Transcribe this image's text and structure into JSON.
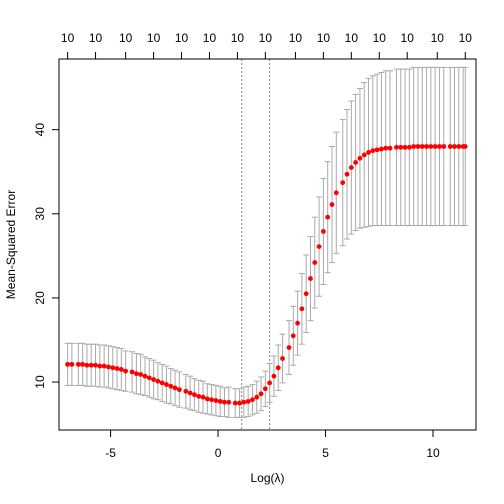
{
  "chart_data": {
    "type": "scatter",
    "title": "",
    "xlabel": "Log(λ)",
    "ylabel": "Mean-Squared Error",
    "xlim": [
      -7.4,
      12.0
    ],
    "ylim": [
      4.3,
      48.4
    ],
    "x_ticks": [
      -5,
      0,
      5,
      10
    ],
    "y_ticks": [
      10,
      20,
      30,
      40
    ],
    "x_tick_labels": [
      "-5",
      "0",
      "5",
      "10"
    ],
    "y_tick_labels": [
      "10",
      "20",
      "30",
      "40"
    ],
    "top_axis": {
      "positions": [
        -7.0,
        -5.7,
        -4.3,
        -3.0,
        -1.7,
        -0.4,
        0.9,
        2.2,
        3.6,
        4.9,
        6.2,
        7.5,
        8.8,
        10.2,
        11.5
      ],
      "labels": [
        "10",
        "10",
        "10",
        "10",
        "10",
        "10",
        "10",
        "10",
        "10",
        "10",
        "10",
        "10",
        "10",
        "10",
        "10"
      ]
    },
    "grid": false,
    "vlines": [
      1.1,
      2.4
    ],
    "colors": {
      "points": "#ff0000",
      "error_bars": "#a9a9a9",
      "vlines": "#808080",
      "axis": "#000000"
    },
    "series": [
      {
        "x": [
          -7.0,
          -6.8,
          -6.5,
          -6.3,
          -6.1,
          -5.9,
          -5.7,
          -5.5,
          -5.3,
          -5.1,
          -4.9,
          -4.7,
          -4.5,
          -4.3,
          -4.0,
          -3.8,
          -3.6,
          -3.4,
          -3.2,
          -3.0,
          -2.8,
          -2.6,
          -2.4,
          -2.2,
          -2.0,
          -1.8,
          -1.5,
          -1.3,
          -1.1,
          -0.9,
          -0.7,
          -0.5,
          -0.3,
          -0.1,
          0.1,
          0.3,
          0.5,
          0.8,
          1.0,
          1.2,
          1.4,
          1.6,
          1.8,
          2.0,
          2.2,
          2.4,
          2.6,
          2.8,
          3.0,
          3.3,
          3.5,
          3.7,
          3.9,
          4.1,
          4.3,
          4.5,
          4.7,
          4.9,
          5.1,
          5.3,
          5.5,
          5.8,
          6.0,
          6.2,
          6.4,
          6.6,
          6.8,
          7.0,
          7.2,
          7.4,
          7.6,
          7.8,
          8.0,
          8.3,
          8.5,
          8.7,
          8.9,
          9.1,
          9.3,
          9.5,
          9.7,
          9.9,
          10.1,
          10.3,
          10.5,
          10.8,
          11.0,
          11.2,
          11.4,
          11.5
        ],
        "y": [
          12.1,
          12.1,
          12.1,
          12.1,
          12.0,
          12.0,
          12.0,
          11.9,
          11.9,
          11.8,
          11.7,
          11.6,
          11.5,
          11.3,
          11.2,
          11.0,
          10.9,
          10.7,
          10.5,
          10.3,
          10.1,
          9.9,
          9.7,
          9.5,
          9.3,
          9.1,
          8.9,
          8.7,
          8.5,
          8.3,
          8.2,
          8.0,
          7.9,
          7.8,
          7.7,
          7.6,
          7.6,
          7.5,
          7.5,
          7.6,
          7.7,
          7.9,
          8.2,
          8.6,
          9.2,
          9.9,
          10.7,
          11.7,
          12.8,
          14.1,
          15.5,
          17.0,
          18.7,
          20.5,
          22.3,
          24.2,
          26.1,
          27.9,
          29.6,
          31.1,
          32.5,
          33.7,
          34.7,
          35.5,
          36.1,
          36.6,
          37.0,
          37.3,
          37.5,
          37.6,
          37.7,
          37.8,
          37.8,
          37.9,
          37.9,
          37.9,
          37.9,
          38.0,
          38.0,
          38.0,
          38.0,
          38.0,
          38.0,
          38.0,
          38.0,
          38.0,
          38.0,
          38.0,
          38.0,
          38.0
        ],
        "lower": [
          9.6,
          9.6,
          9.6,
          9.6,
          9.5,
          9.5,
          9.5,
          9.4,
          9.4,
          9.3,
          9.2,
          9.1,
          9.0,
          8.9,
          8.8,
          8.6,
          8.5,
          8.4,
          8.2,
          8.0,
          7.9,
          7.7,
          7.5,
          7.4,
          7.2,
          7.0,
          6.9,
          6.7,
          6.6,
          6.4,
          6.3,
          6.2,
          6.1,
          6.0,
          5.9,
          5.9,
          5.8,
          5.8,
          5.8,
          5.8,
          5.9,
          6.1,
          6.3,
          6.6,
          7.1,
          7.6,
          8.3,
          9.0,
          9.9,
          10.9,
          12.0,
          13.2,
          14.5,
          15.9,
          17.3,
          18.8,
          20.2,
          21.6,
          23.0,
          24.2,
          25.3,
          26.2,
          27.0,
          27.6,
          28.0,
          28.3,
          28.4,
          28.5,
          28.6,
          28.6,
          28.6,
          28.6,
          28.6,
          28.6,
          28.6,
          28.6,
          28.6,
          28.6,
          28.6,
          28.6,
          28.6,
          28.6,
          28.6,
          28.6,
          28.6,
          28.6,
          28.6,
          28.6,
          28.6,
          28.6
        ],
        "upper": [
          14.6,
          14.6,
          14.6,
          14.6,
          14.5,
          14.5,
          14.5,
          14.4,
          14.4,
          14.3,
          14.2,
          14.1,
          14.0,
          13.7,
          13.6,
          13.4,
          13.3,
          13.0,
          12.8,
          12.6,
          12.3,
          12.1,
          11.9,
          11.6,
          11.4,
          11.2,
          10.9,
          10.7,
          10.4,
          10.2,
          10.1,
          9.8,
          9.7,
          9.6,
          9.5,
          9.3,
          9.4,
          9.2,
          9.2,
          9.4,
          9.5,
          9.7,
          10.1,
          10.6,
          11.3,
          12.2,
          13.1,
          14.4,
          15.7,
          17.3,
          19.0,
          20.8,
          22.9,
          25.1,
          27.3,
          29.6,
          32.0,
          34.2,
          36.2,
          38.0,
          39.7,
          41.2,
          42.4,
          43.4,
          44.2,
          44.9,
          45.6,
          46.1,
          46.4,
          46.6,
          46.8,
          47.0,
          47.0,
          47.2,
          47.2,
          47.2,
          47.2,
          47.4,
          47.4,
          47.4,
          47.4,
          47.4,
          47.4,
          47.4,
          47.4,
          47.4,
          47.4,
          47.4,
          47.4,
          47.4
        ]
      }
    ]
  }
}
